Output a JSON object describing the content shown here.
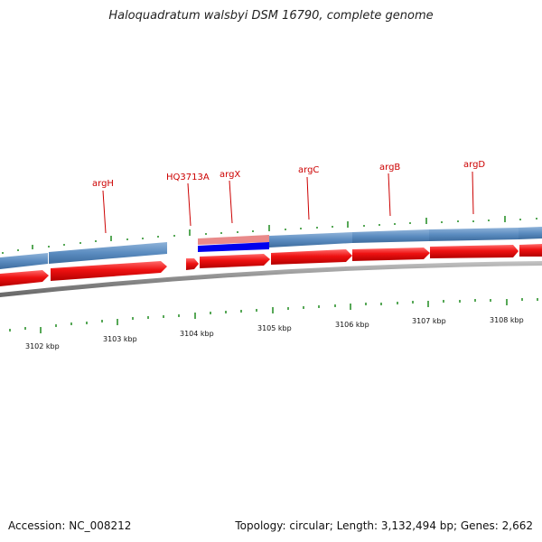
{
  "title": "Haloquadratum walsbyi DSM 16790, complete genome",
  "footer": {
    "accession": "Accession: NC_008212",
    "summary": "Topology: circular; Length: 3,132,494 bp; Genes: 2,662"
  },
  "genes": [
    {
      "name": "argH"
    },
    {
      "name": "HQ3713A"
    },
    {
      "name": "argX"
    },
    {
      "name": "argC"
    },
    {
      "name": "argB"
    },
    {
      "name": "argD"
    }
  ],
  "scale": {
    "labels": [
      "3102 kbp",
      "3103 kbp",
      "3104 kbp",
      "3105 kbp",
      "3106 kbp",
      "3107 kbp",
      "3108 kbp"
    ]
  },
  "colors": {
    "cds_forward": "#5b8cc0",
    "cds_reverse": "#ee1111",
    "rna_pink": "#e98a8a",
    "rna_blue": "#0000ee",
    "backbone": "#888888",
    "tick": "#1f8a1f",
    "label": "#cc0000"
  }
}
